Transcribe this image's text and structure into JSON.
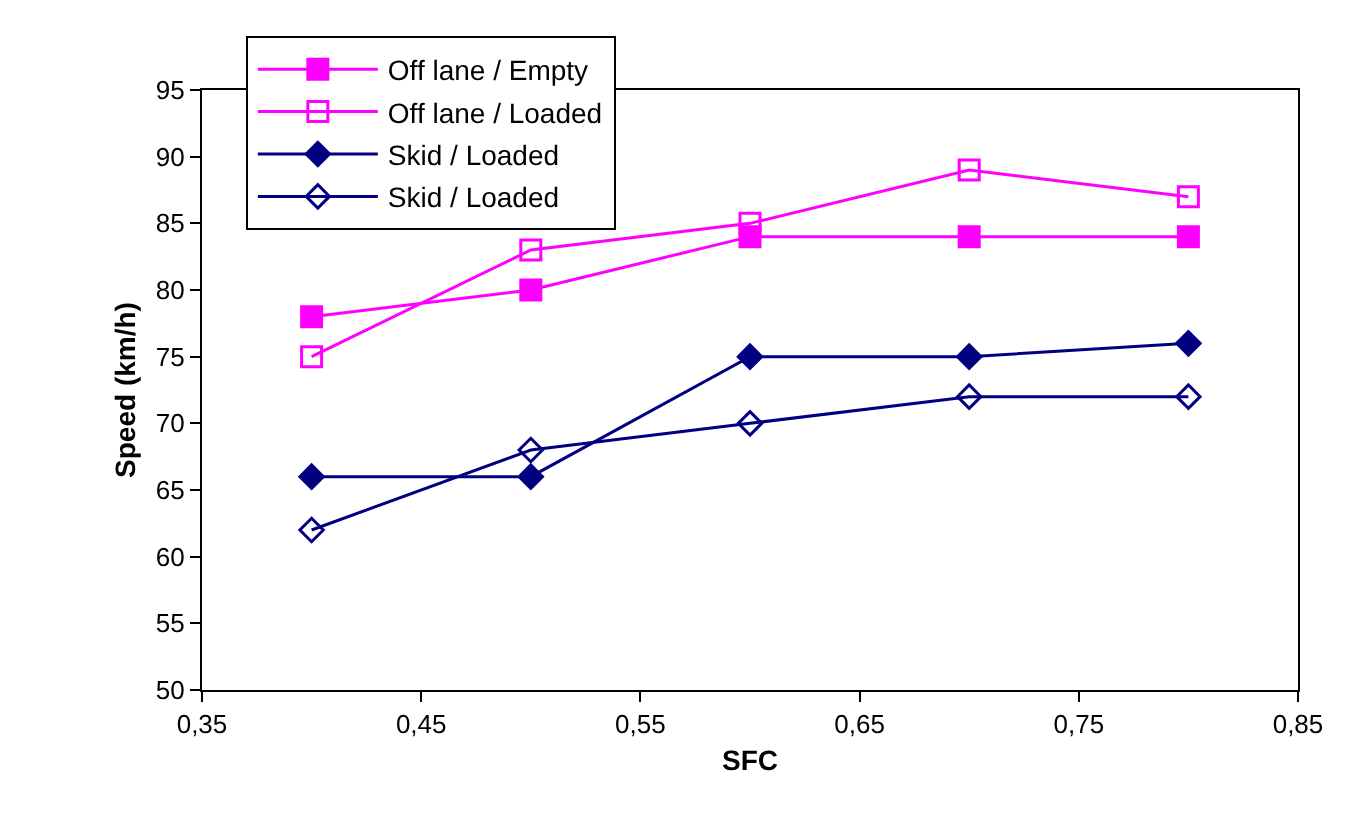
{
  "chart_data": {
    "type": "line",
    "xlabel": "SFC",
    "ylabel": "Speed (km/h)",
    "x": [
      0.4,
      0.5,
      0.6,
      0.7,
      0.8
    ],
    "series": [
      {
        "name": "Off lane / Empty",
        "color": "#ff00ff",
        "marker": "square",
        "values": [
          78,
          80,
          84,
          84,
          84
        ]
      },
      {
        "name": "Off lane / Loaded",
        "color": "#ff00ff",
        "marker": "square",
        "values": [
          75,
          83,
          85,
          89,
          87
        ]
      },
      {
        "name": "Skid / Loaded",
        "color": "#000080",
        "marker": "diamond",
        "values": [
          66,
          66,
          75,
          75,
          76
        ]
      },
      {
        "name": "Skid / Loaded",
        "color": "#000080",
        "marker": "diamond",
        "values": [
          62,
          68,
          70,
          72,
          72
        ]
      }
    ],
    "xlim": [
      0.35,
      0.85
    ],
    "xticks": [
      {
        "value": 0.35,
        "label": "0,35"
      },
      {
        "value": 0.45,
        "label": "0,45"
      },
      {
        "value": 0.55,
        "label": "0,55"
      },
      {
        "value": 0.65,
        "label": "0,65"
      },
      {
        "value": 0.75,
        "label": "0,75"
      },
      {
        "value": 0.85,
        "label": "0,85"
      }
    ],
    "ylim": [
      50,
      95
    ],
    "yticks": [
      50,
      55,
      60,
      65,
      70,
      75,
      80,
      85,
      90,
      95
    ],
    "legend": "top left",
    "line_style": "solid"
  }
}
